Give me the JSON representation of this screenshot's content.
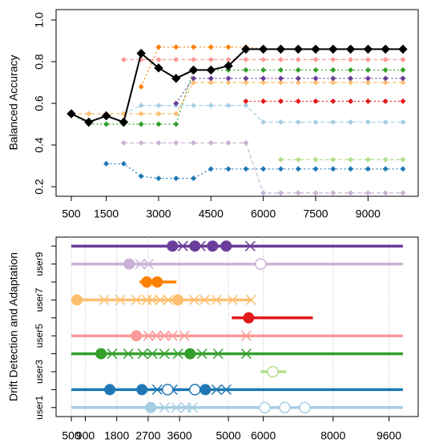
{
  "chart_data": [
    {
      "type": "line",
      "ylabel": "Balanced Accuracy",
      "x": [
        500,
        1000,
        1500,
        2000,
        2500,
        3000,
        3500,
        4000,
        4500,
        5000,
        5500,
        6000,
        6500,
        7000,
        7500,
        8000,
        8500,
        9000,
        9500,
        10000
      ],
      "xlim": [
        63,
        10437
      ],
      "xticks": [
        500,
        1500,
        3000,
        4500,
        6000,
        7500,
        9000
      ],
      "ylim": [
        0.154,
        1.05
      ],
      "yticks": [
        0.2,
        0.4,
        0.6,
        0.8,
        {
          "value": 1,
          "label": "1.0"
        }
      ],
      "series": [
        {
          "color": "#a6cee3",
          "values": [
            null,
            null,
            null,
            0.55,
            0.59,
            0.59,
            0.59,
            0.59,
            0.59,
            0.59,
            0.59,
            0.51,
            0.51,
            0.51,
            0.51,
            0.51,
            0.51,
            0.51,
            0.51,
            0.51
          ]
        },
        {
          "color": "#1f78b4",
          "values": [
            null,
            null,
            0.31,
            0.31,
            0.25,
            0.24,
            0.24,
            0.24,
            0.285,
            0.285,
            0.285,
            0.285,
            0.285,
            0.285,
            0.285,
            0.285,
            0.285,
            0.285,
            0.285,
            0.285
          ]
        },
        {
          "color": "#b2df8a",
          "values": [
            null,
            null,
            null,
            null,
            null,
            null,
            null,
            null,
            null,
            null,
            null,
            null,
            0.33,
            0.33,
            0.33,
            0.33,
            0.33,
            0.33,
            0.33,
            0.33
          ]
        },
        {
          "color": "#33a02c",
          "values": [
            0.55,
            0.5,
            0.5,
            0.5,
            0.5,
            0.5,
            0.5,
            0.76,
            0.76,
            0.76,
            0.76,
            0.76,
            0.76,
            0.76,
            0.76,
            0.76,
            0.76,
            0.76,
            0.76,
            0.76
          ]
        },
        {
          "color": "#fb9a99",
          "values": [
            null,
            null,
            null,
            0.81,
            0.81,
            0.81,
            0.81,
            0.81,
            0.81,
            0.81,
            0.81,
            0.81,
            0.81,
            0.81,
            0.81,
            0.81,
            0.81,
            0.81,
            0.81,
            0.81
          ]
        },
        {
          "color": "#e31a1c",
          "values": [
            null,
            null,
            null,
            null,
            null,
            null,
            null,
            null,
            null,
            null,
            0.61,
            0.61,
            0.61,
            0.61,
            0.61,
            0.61,
            0.61,
            0.61,
            0.61,
            0.61
          ]
        },
        {
          "color": "#fdbf6f",
          "values": [
            0.55,
            0.55,
            0.55,
            0.55,
            0.55,
            0.55,
            0.55,
            0.7,
            0.7,
            0.7,
            0.7,
            0.7,
            0.7,
            0.7,
            0.7,
            0.7,
            0.7,
            0.7,
            0.7,
            0.7
          ]
        },
        {
          "color": "#ff7f00",
          "values": [
            null,
            null,
            null,
            null,
            0.68,
            0.87,
            0.87,
            0.87,
            0.87,
            0.87,
            0.87,
            0.86,
            0.86,
            0.86,
            0.86,
            0.86,
            0.86,
            0.86,
            0.86,
            0.86
          ]
        },
        {
          "color": "#cab2d6",
          "values": [
            null,
            null,
            null,
            0.41,
            0.41,
            0.41,
            0.41,
            0.41,
            0.41,
            0.41,
            0.41,
            0.17,
            0.17,
            0.17,
            0.17,
            0.17,
            0.17,
            0.17,
            0.17,
            0.17
          ]
        },
        {
          "color": "#6a3d9a",
          "values": [
            null,
            null,
            null,
            null,
            null,
            null,
            0.6,
            0.72,
            0.72,
            0.72,
            0.72,
            0.72,
            0.72,
            0.72,
            0.72,
            0.72,
            0.72,
            0.72,
            0.72,
            0.72
          ]
        },
        {
          "color": "#000000",
          "values": [
            0.55,
            0.51,
            0.54,
            0.51,
            0.84,
            0.77,
            0.72,
            0.76,
            0.76,
            0.78,
            0.86,
            0.86,
            0.86,
            0.86,
            0.86,
            0.86,
            0.86,
            0.86,
            0.86,
            0.86
          ]
        }
      ]
    },
    {
      "type": "timeline",
      "ylabel": "Drift Detection and Adaptation",
      "categories": [
        "user1",
        null,
        "user3",
        null,
        "user5",
        null,
        "user7",
        null,
        "user9",
        null
      ],
      "xlim": [
        63,
        10437
      ],
      "xticks": [
        500,
        900,
        1800,
        2700,
        3600,
        5000,
        6000,
        8000,
        9600
      ],
      "grid": true,
      "rows": [
        {
          "color": "#a6cee3",
          "line": [
            500,
            10000
          ],
          "filled": [
            2776
          ],
          "crosses": [
            3167,
            3511,
            3787,
            3971
          ],
          "hollow": [
            6040,
            6615,
            7190
          ]
        },
        {
          "color": "#1f78b4",
          "line": [
            500,
            10000
          ],
          "filled": [
            1603,
            2523,
            4339
          ],
          "crosses": [
            2960,
            3397,
            4661,
            4937
          ],
          "hollow": [
            3259,
            4040
          ]
        },
        {
          "color": "#b2df8a",
          "line": [
            5925,
            6661
          ],
          "filled": [],
          "crosses": [],
          "hollow": [
            6270
          ]
        },
        {
          "color": "#33a02c",
          "line": [
            500,
            10000
          ],
          "filled": [
            1351,
            3902
          ],
          "crosses": [
            1672,
            2132,
            2546,
            2822,
            3167,
            3557,
            4247,
            4707,
            5512
          ],
          "hollow": []
        },
        {
          "color": "#fb9a99",
          "line": [
            500,
            10000
          ],
          "filled": [
            2362
          ],
          "crosses": [
            2707,
            2937,
            3167,
            3397,
            3741,
            5512
          ],
          "hollow": []
        },
        {
          "color": "#e31a1c",
          "line": [
            5098,
            7420
          ],
          "filled": [
            5580
          ],
          "crosses": [],
          "hollow": []
        },
        {
          "color": "#fdbf6f",
          "line": [
            500,
            5672
          ],
          "filled": [
            661,
            3557
          ],
          "crosses": [
            1442,
            1902,
            2362,
            2661,
            2822,
            3052,
            3282,
            4017,
            4316,
            4661,
            5121,
            5650
          ],
          "hollow": []
        },
        {
          "color": "#ff7f00",
          "line": [
            2454,
            3511
          ],
          "filled": [
            2661,
            2960
          ],
          "crosses": [],
          "hollow": []
        },
        {
          "color": "#cab2d6",
          "line": [
            500,
            10000
          ],
          "filled": [
            2155
          ],
          "crosses": [
            2477,
            2707
          ],
          "hollow": [
            5925
          ]
        },
        {
          "color": "#6a3d9a",
          "line": [
            500,
            10000
          ],
          "filled": [
            3397,
            4040,
            4546,
            4937
          ],
          "crosses": [
            3695,
            4201,
            5626
          ],
          "hollow": []
        }
      ]
    }
  ]
}
